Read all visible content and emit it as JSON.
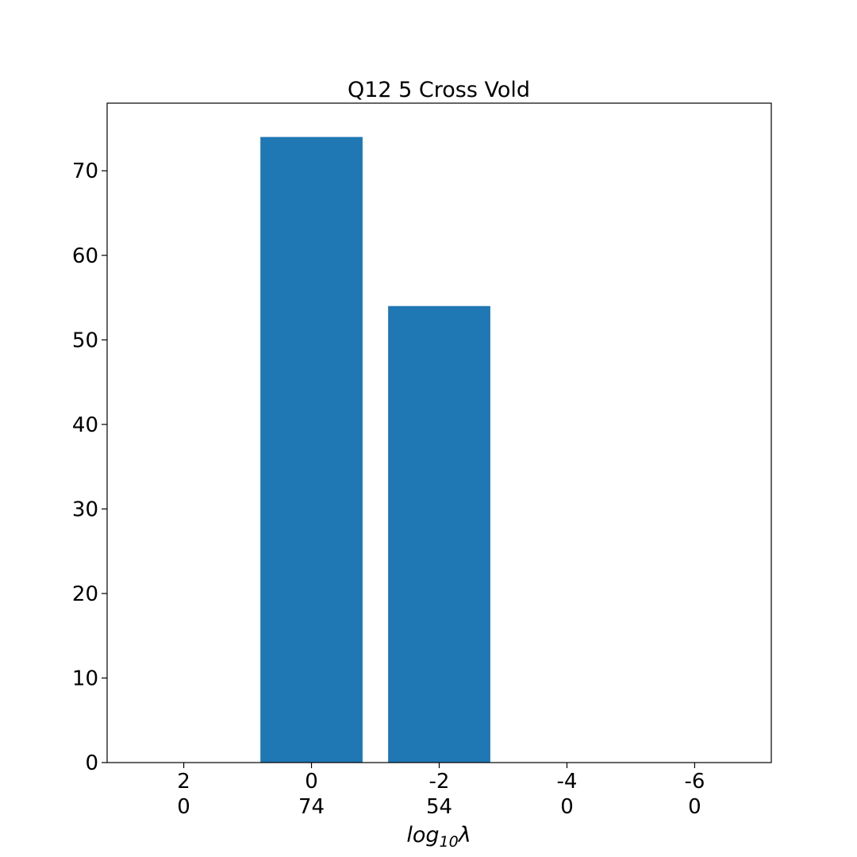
{
  "chart_data": {
    "type": "bar",
    "title": "Q12 5 Cross Vold",
    "xlabel_main": "log",
    "xlabel_sub": "10",
    "xlabel_tail": "λ",
    "ylabel": "",
    "categories": [
      "2",
      "0",
      "-2",
      "-4",
      "-6"
    ],
    "count_labels": [
      "0",
      "74",
      "54",
      "0",
      "0"
    ],
    "values": [
      0,
      74,
      54,
      0,
      0
    ],
    "ylim": [
      0,
      78
    ],
    "yticks": [
      0,
      10,
      20,
      30,
      40,
      50,
      60,
      70
    ],
    "bar_color": "#1f77b4",
    "grid": false,
    "legend": "none"
  }
}
